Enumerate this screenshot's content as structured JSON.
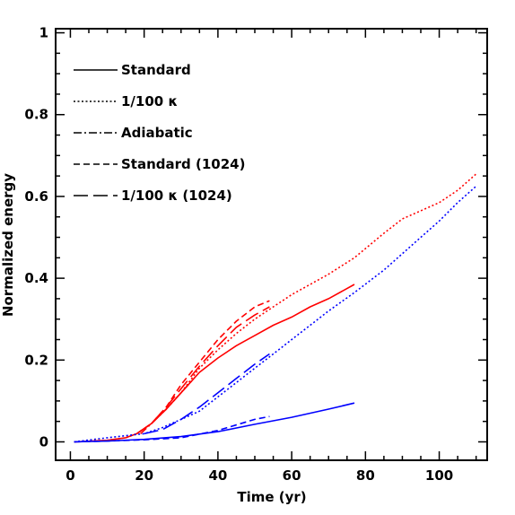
{
  "chart_data": {
    "type": "line",
    "xlabel": "Time (yr)",
    "ylabel": "Normalized energy",
    "xlim": [
      -4,
      113
    ],
    "ylim": [
      -0.045,
      1.01
    ],
    "xticks": [
      0,
      20,
      40,
      60,
      80,
      100
    ],
    "yticks": [
      0,
      0.2,
      0.4,
      0.6,
      0.8,
      1
    ],
    "ytick_labels": [
      "0",
      "0.2",
      "0.4",
      "0.6",
      "0.8",
      "1"
    ],
    "grid": false,
    "legend_position": "top-left",
    "legend": [
      {
        "label": "Standard",
        "dash": "solid"
      },
      {
        "label": "1/100 κ",
        "dash": "dotted"
      },
      {
        "label": "Adiabatic",
        "dash": "dashdot"
      },
      {
        "label": "Standard (1024)",
        "dash": "dashed"
      },
      {
        "label": "1/100 κ (1024)",
        "dash": "longdash"
      }
    ],
    "series": [
      {
        "color": "#ff0000",
        "dash": "solid",
        "points": [
          [
            1,
            0
          ],
          [
            10,
            0.004
          ],
          [
            15,
            0.01
          ],
          [
            18,
            0.02
          ],
          [
            22,
            0.045
          ],
          [
            26,
            0.08
          ],
          [
            30,
            0.12
          ],
          [
            35,
            0.17
          ],
          [
            40,
            0.205
          ],
          [
            45,
            0.235
          ],
          [
            50,
            0.26
          ],
          [
            55,
            0.285
          ],
          [
            60,
            0.305
          ],
          [
            65,
            0.33
          ],
          [
            70,
            0.35
          ],
          [
            77,
            0.385
          ]
        ]
      },
      {
        "color": "#ff0000",
        "dash": "dotted",
        "points": [
          [
            1,
            0
          ],
          [
            10,
            0.004
          ],
          [
            15,
            0.01
          ],
          [
            18,
            0.02
          ],
          [
            22,
            0.045
          ],
          [
            26,
            0.08
          ],
          [
            30,
            0.12
          ],
          [
            35,
            0.18
          ],
          [
            40,
            0.225
          ],
          [
            45,
            0.265
          ],
          [
            50,
            0.3
          ],
          [
            55,
            0.33
          ],
          [
            60,
            0.36
          ],
          [
            65,
            0.385
          ],
          [
            70,
            0.41
          ],
          [
            77,
            0.45
          ],
          [
            85,
            0.51
          ],
          [
            90,
            0.545
          ],
          [
            95,
            0.565
          ],
          [
            100,
            0.585
          ],
          [
            105,
            0.615
          ],
          [
            110,
            0.655
          ]
        ]
      },
      {
        "color": "#ff0000",
        "dash": "dashdot",
        "points": [
          [
            19,
            0.02
          ],
          [
            22,
            0.045
          ],
          [
            26,
            0.08
          ],
          [
            30,
            0.12
          ],
          [
            33,
            0.15
          ]
        ]
      },
      {
        "color": "#ff0000",
        "dash": "dashed",
        "points": [
          [
            18,
            0.02
          ],
          [
            22,
            0.045
          ],
          [
            26,
            0.085
          ],
          [
            30,
            0.14
          ],
          [
            35,
            0.195
          ],
          [
            40,
            0.25
          ],
          [
            45,
            0.295
          ],
          [
            50,
            0.33
          ],
          [
            54,
            0.345
          ]
        ]
      },
      {
        "color": "#ff0000",
        "dash": "longdash",
        "points": [
          [
            18,
            0.02
          ],
          [
            22,
            0.045
          ],
          [
            26,
            0.085
          ],
          [
            30,
            0.13
          ],
          [
            35,
            0.185
          ],
          [
            40,
            0.235
          ],
          [
            45,
            0.28
          ],
          [
            50,
            0.31
          ],
          [
            54,
            0.33
          ]
        ]
      },
      {
        "color": "#0000ff",
        "dash": "solid",
        "points": [
          [
            1,
            0
          ],
          [
            10,
            0.002
          ],
          [
            20,
            0.006
          ],
          [
            30,
            0.013
          ],
          [
            40,
            0.025
          ],
          [
            50,
            0.043
          ],
          [
            60,
            0.06
          ],
          [
            70,
            0.08
          ],
          [
            77,
            0.095
          ]
        ]
      },
      {
        "color": "#0000ff",
        "dash": "dotted",
        "points": [
          [
            1,
            0
          ],
          [
            10,
            0.01
          ],
          [
            15,
            0.015
          ],
          [
            20,
            0.02
          ],
          [
            25,
            0.035
          ],
          [
            30,
            0.055
          ],
          [
            35,
            0.075
          ],
          [
            40,
            0.11
          ],
          [
            45,
            0.145
          ],
          [
            50,
            0.18
          ],
          [
            55,
            0.215
          ],
          [
            60,
            0.25
          ],
          [
            65,
            0.285
          ],
          [
            70,
            0.32
          ],
          [
            77,
            0.365
          ],
          [
            85,
            0.42
          ],
          [
            90,
            0.46
          ],
          [
            95,
            0.5
          ],
          [
            100,
            0.54
          ],
          [
            105,
            0.585
          ],
          [
            110,
            0.625
          ]
        ]
      },
      {
        "color": "#0000ff",
        "dash": "dashed",
        "points": [
          [
            1,
            0
          ],
          [
            10,
            0.002
          ],
          [
            20,
            0.005
          ],
          [
            30,
            0.01
          ],
          [
            40,
            0.028
          ],
          [
            50,
            0.055
          ],
          [
            54,
            0.062
          ]
        ]
      },
      {
        "color": "#0000ff",
        "dash": "longdash",
        "points": [
          [
            20,
            0.02
          ],
          [
            25,
            0.03
          ],
          [
            30,
            0.055
          ],
          [
            35,
            0.085
          ],
          [
            40,
            0.12
          ],
          [
            45,
            0.155
          ],
          [
            50,
            0.19
          ],
          [
            54,
            0.215
          ]
        ]
      }
    ]
  }
}
